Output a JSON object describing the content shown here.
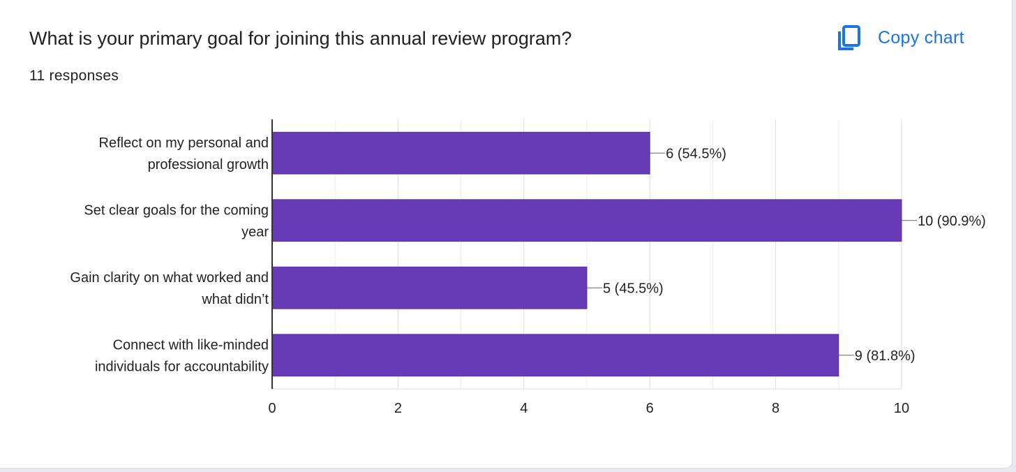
{
  "header": {
    "title": "What is your primary goal for joining this annual review program?",
    "responses": "11 responses",
    "copy_label": "Copy chart"
  },
  "icons": {
    "copy": "copy-icon"
  },
  "colors": {
    "bar": "#673ab7",
    "accent": "#1a73e8",
    "grid": "#e0e0e0",
    "axis": "#333333"
  },
  "chart_data": {
    "type": "bar",
    "orientation": "horizontal",
    "title": "What is your primary goal for joining this annual review program?",
    "categories": [
      [
        "Reflect on my personal and",
        "professional growth"
      ],
      [
        "Set clear goals for the coming",
        "year"
      ],
      [
        "Gain clarity on what worked and",
        "what didn’t"
      ],
      [
        "Connect with like-minded",
        "individuals for accountability"
      ]
    ],
    "values": [
      6,
      10,
      5,
      9
    ],
    "data_labels": [
      "6 (54.5%)",
      "10 (90.9%)",
      "5 (45.5%)",
      "9 (81.8%)"
    ],
    "xlim": [
      0,
      10
    ],
    "xticks": [
      0,
      2,
      4,
      6,
      8,
      10
    ],
    "grid": true,
    "xlabel": "",
    "ylabel": ""
  }
}
